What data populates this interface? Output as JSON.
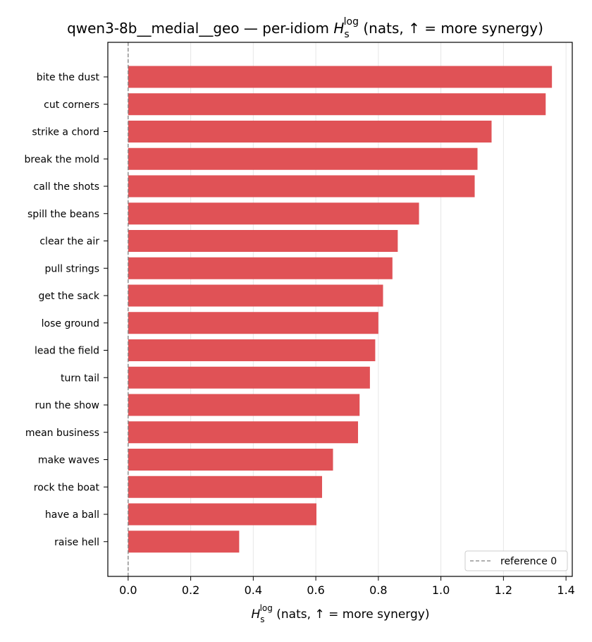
{
  "chart_data": {
    "type": "bar",
    "orientation": "horizontal",
    "title_prefix": "qwen3-8b__medial__geo — per-idiom ",
    "title_suffix": " (nats, ↑ = more synergy)",
    "symbol_base": "H",
    "symbol_sub": "s",
    "symbol_sup": "log",
    "xlabel_suffix": " (nats, ↑ = more synergy)",
    "categories": [
      "bite the dust",
      "cut corners",
      "strike a chord",
      "break the mold",
      "call the shots",
      "spill the beans",
      "clear the air",
      "pull strings",
      "get the sack",
      "lose ground",
      "lead the field",
      "turn tail",
      "run the show",
      "mean business",
      "make waves",
      "rock the boat",
      "have a ball",
      "raise hell"
    ],
    "values": [
      1.355,
      1.335,
      1.162,
      1.117,
      1.108,
      0.93,
      0.862,
      0.845,
      0.815,
      0.8,
      0.79,
      0.773,
      0.74,
      0.735,
      0.655,
      0.62,
      0.602,
      0.355
    ],
    "xlim": [
      -0.065,
      1.42
    ],
    "xticks": [
      "0.0",
      "0.2",
      "0.4",
      "0.6",
      "0.8",
      "1.0",
      "1.2",
      "1.4"
    ],
    "grid": "x",
    "bar_color": "#e05256",
    "reference_line": {
      "value": 0,
      "label": "reference 0",
      "style": "dashed",
      "color": "#808080"
    },
    "legend_position": "lower-right"
  }
}
